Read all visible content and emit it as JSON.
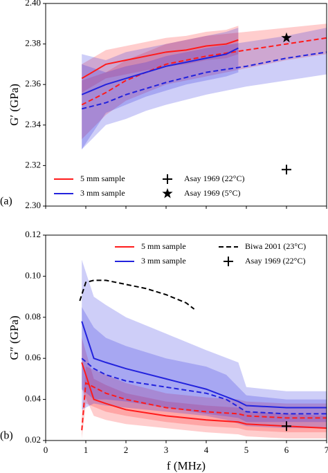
{
  "chart_data": [
    {
      "type": "line",
      "panel_label": "(a)",
      "ylabel": "G′ (GPa)",
      "xlim": [
        0,
        7
      ],
      "xticks": [
        0,
        1,
        2,
        3,
        4,
        5,
        6,
        7
      ],
      "ylim": [
        2.3,
        2.4
      ],
      "yticks": [
        {
          "value": 2.3,
          "label": "2.30"
        },
        {
          "value": 2.32,
          "label": "2.32"
        },
        {
          "value": 2.34,
          "label": "2.34"
        },
        {
          "value": 2.36,
          "label": "2.36"
        },
        {
          "value": 2.38,
          "label": "2.38"
        },
        {
          "value": 2.4,
          "label": "2.40"
        }
      ],
      "legend": "lower left",
      "series": [
        {
          "name": "5 mm sample",
          "color": "#ff1a1a",
          "lines": [
            {
              "style": "solid",
              "x": [
                0.9,
                1.5,
                2,
                2.5,
                3,
                3.5,
                4,
                4.5,
                4.8
              ],
              "values": [
                2.363,
                2.37,
                2.372,
                2.374,
                2.376,
                2.377,
                2.379,
                2.38,
                2.382
              ],
              "lower": [
                2.356,
                2.363,
                2.365,
                2.367,
                2.369,
                2.37,
                2.372,
                2.373,
                2.375
              ],
              "upper": [
                2.37,
                2.377,
                2.379,
                2.381,
                2.383,
                2.384,
                2.386,
                2.387,
                2.389
              ]
            },
            {
              "style": "dashed",
              "x": [
                0.9,
                1.5,
                2,
                2.5,
                3,
                4,
                5,
                6,
                7
              ],
              "values": [
                2.35,
                2.356,
                2.362,
                2.366,
                2.37,
                2.374,
                2.377,
                2.38,
                2.383
              ],
              "lower": [
                2.333,
                2.345,
                2.352,
                2.356,
                2.36,
                2.364,
                2.368,
                2.372,
                2.375
              ],
              "upper": [
                2.362,
                2.366,
                2.372,
                2.376,
                2.38,
                2.384,
                2.386,
                2.388,
                2.39
              ]
            }
          ]
        },
        {
          "name": "3 mm sample",
          "color": "#2222dd",
          "lines": [
            {
              "style": "solid",
              "x": [
                0.9,
                1.5,
                2,
                2.5,
                3,
                3.5,
                4,
                4.5,
                4.8
              ],
              "values": [
                2.355,
                2.36,
                2.363,
                2.366,
                2.369,
                2.371,
                2.373,
                2.375,
                2.378
              ],
              "lower": [
                2.328,
                2.346,
                2.35,
                2.354,
                2.357,
                2.36,
                2.362,
                2.364,
                2.366
              ],
              "upper": [
                2.375,
                2.372,
                2.376,
                2.378,
                2.38,
                2.382,
                2.384,
                2.386,
                2.388
              ]
            },
            {
              "style": "dashed",
              "x": [
                0.9,
                1.5,
                2,
                2.5,
                3,
                4,
                5,
                6,
                7
              ],
              "values": [
                2.348,
                2.351,
                2.355,
                2.358,
                2.361,
                2.366,
                2.369,
                2.373,
                2.376
              ],
              "lower": [
                2.328,
                2.34,
                2.343,
                2.347,
                2.35,
                2.355,
                2.359,
                2.362,
                2.365
              ],
              "upper": [
                2.37,
                2.366,
                2.369,
                2.371,
                2.374,
                2.378,
                2.381,
                2.384,
                2.388
              ]
            }
          ]
        }
      ],
      "markers": [
        {
          "name": "Asay 1969 (22°C)",
          "marker": "plus",
          "color": "#000000",
          "x": 6,
          "y": 2.318
        },
        {
          "name": "Asay 1969 (5°C)",
          "marker": "star",
          "color": "#000000",
          "x": 6,
          "y": 2.383
        }
      ]
    },
    {
      "type": "line",
      "panel_label": "(b)",
      "ylabel": "G″ (GPa)",
      "xlabel": "f (MHz)",
      "xlim": [
        0,
        7
      ],
      "xticks": [
        0,
        1,
        2,
        3,
        4,
        5,
        6,
        7
      ],
      "ylim": [
        0.02,
        0.12
      ],
      "yticks": [
        0.02,
        0.04,
        0.06,
        0.08,
        {
          "value": 0.1,
          "label": "0.10"
        },
        0.12
      ],
      "legend": "upper right",
      "series": [
        {
          "name": "5 mm sample",
          "color": "#ff1a1a",
          "lines": [
            {
              "style": "solid",
              "x": [
                0.9,
                1.2,
                1.5,
                2,
                3,
                4,
                4.8,
                5,
                6,
                7
              ],
              "values": [
                0.058,
                0.04,
                0.038,
                0.035,
                0.032,
                0.03,
                0.029,
                0.028,
                0.027,
                0.026
              ],
              "lower": [
                0.045,
                0.032,
                0.03,
                0.028,
                0.026,
                0.024,
                0.023,
                0.022,
                0.021,
                0.021
              ],
              "upper": [
                0.07,
                0.05,
                0.047,
                0.043,
                0.039,
                0.037,
                0.036,
                0.034,
                0.033,
                0.032
              ]
            },
            {
              "style": "dashed",
              "x": [
                0.9,
                1.0,
                1.5,
                2,
                3,
                4,
                4.8,
                5,
                6,
                7
              ],
              "values": [
                0.025,
                0.048,
                0.043,
                0.04,
                0.036,
                0.034,
                0.033,
                0.032,
                0.031,
                0.031
              ],
              "lower": [
                0.021,
                0.038,
                0.034,
                0.032,
                0.029,
                0.027,
                0.026,
                0.025,
                0.024,
                0.024
              ],
              "upper": [
                0.032,
                0.056,
                0.052,
                0.048,
                0.043,
                0.041,
                0.04,
                0.039,
                0.038,
                0.038
              ]
            }
          ]
        },
        {
          "name": "3 mm sample",
          "color": "#2222dd",
          "lines": [
            {
              "style": "solid",
              "x": [
                0.9,
                1.2,
                1.5,
                2,
                3,
                4,
                4.8,
                5,
                6,
                7
              ],
              "values": [
                0.078,
                0.06,
                0.058,
                0.055,
                0.05,
                0.045,
                0.039,
                0.037,
                0.036,
                0.036
              ],
              "lower": [
                0.045,
                0.04,
                0.04,
                0.039,
                0.036,
                0.033,
                0.031,
                0.029,
                0.029,
                0.029
              ],
              "upper": [
                0.108,
                0.09,
                0.086,
                0.08,
                0.072,
                0.064,
                0.058,
                0.046,
                0.044,
                0.044
              ]
            },
            {
              "style": "dashed",
              "x": [
                0.9,
                1.2,
                1.5,
                2,
                3,
                4,
                4.5,
                5,
                6,
                7
              ],
              "values": [
                0.06,
                0.055,
                0.052,
                0.049,
                0.046,
                0.043,
                0.04,
                0.034,
                0.033,
                0.033
              ],
              "lower": [
                0.035,
                0.038,
                0.037,
                0.036,
                0.034,
                0.032,
                0.03,
                0.027,
                0.026,
                0.026
              ],
              "upper": [
                0.085,
                0.075,
                0.07,
                0.066,
                0.06,
                0.056,
                0.052,
                0.042,
                0.04,
                0.04
              ]
            }
          ]
        },
        {
          "name": "Biwa 2001 (23°C)",
          "color": "#000000",
          "lines": [
            {
              "style": "dashed",
              "x": [
                0.85,
                1.0,
                1.2,
                1.5,
                2,
                2.5,
                3,
                3.5,
                3.7
              ],
              "values": [
                0.088,
                0.097,
                0.098,
                0.098,
                0.096,
                0.094,
                0.091,
                0.087,
                0.084
              ]
            }
          ]
        }
      ],
      "markers": [
        {
          "name": "Asay 1969 (22°C)",
          "marker": "plus",
          "color": "#000000",
          "x": 6,
          "y": 0.027
        }
      ]
    }
  ]
}
